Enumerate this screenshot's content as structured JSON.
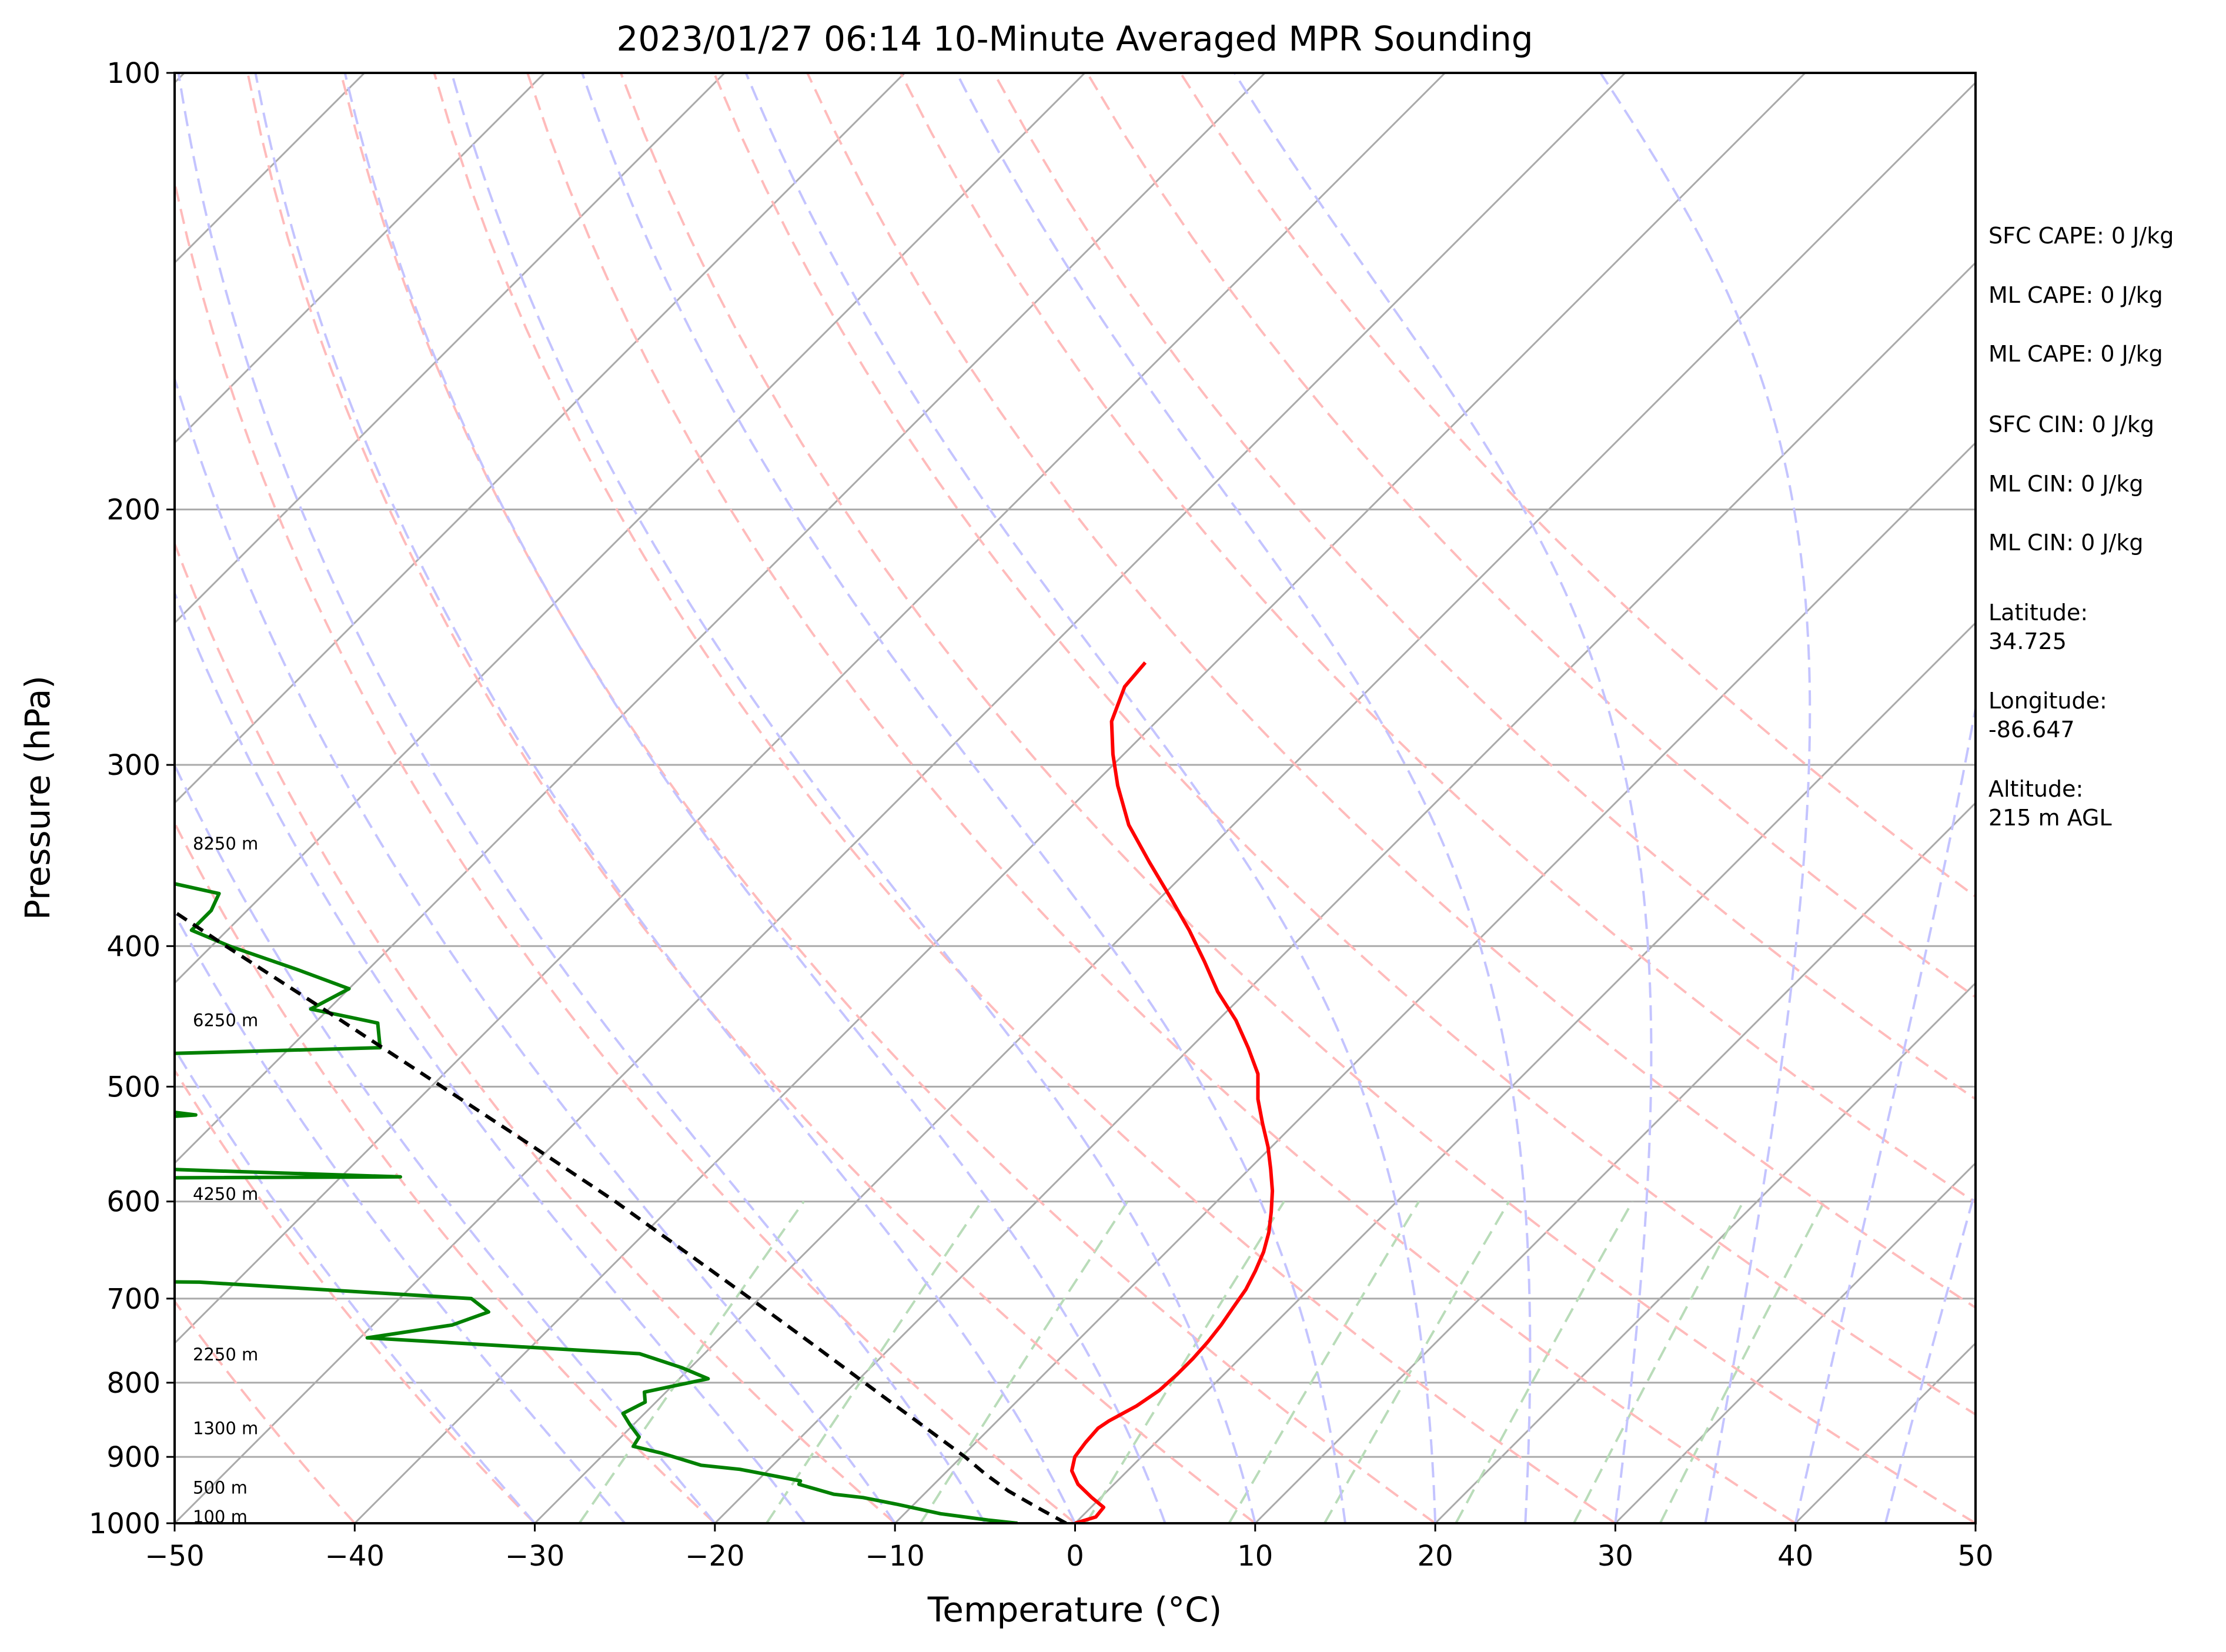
{
  "chart_data": {
    "type": "skew-t",
    "title": "2023/01/27 06:14 10-Minute Averaged MPR Sounding",
    "xlabel": "Temperature (°C)",
    "ylabel": "Pressure (hPa)",
    "xlim": [
      -50,
      50
    ],
    "ylim": [
      1000,
      100
    ],
    "y_scale": "log",
    "x_ticks": [
      "−50",
      "−40",
      "−30",
      "−20",
      "−10",
      "0",
      "10",
      "20",
      "30",
      "40",
      "50"
    ],
    "y_ticks": [
      "1000",
      "900",
      "800",
      "700",
      "600",
      "500",
      "400",
      "300",
      "200",
      "100"
    ],
    "grid": true,
    "series": [
      {
        "name": "temperature",
        "color": "#ff0000",
        "points": [
          [
            1000,
            0.0
          ],
          [
            990,
            0.8
          ],
          [
            975,
            0.7
          ],
          [
            960,
            -0.5
          ],
          [
            940,
            -2.0
          ],
          [
            920,
            -3.1
          ],
          [
            900,
            -3.7
          ],
          [
            880,
            -3.9
          ],
          [
            860,
            -4.0
          ],
          [
            850,
            -3.8
          ],
          [
            830,
            -3.1
          ],
          [
            810,
            -2.7
          ],
          [
            790,
            -2.6
          ],
          [
            770,
            -2.6
          ],
          [
            750,
            -2.7
          ],
          [
            730,
            -2.9
          ],
          [
            710,
            -3.2
          ],
          [
            690,
            -3.5
          ],
          [
            670,
            -4.0
          ],
          [
            650,
            -4.6
          ],
          [
            630,
            -5.4
          ],
          [
            610,
            -6.4
          ],
          [
            590,
            -7.5
          ],
          [
            570,
            -8.8
          ],
          [
            550,
            -10.2
          ],
          [
            530,
            -11.8
          ],
          [
            510,
            -13.4
          ],
          [
            490,
            -14.8
          ],
          [
            470,
            -16.8
          ],
          [
            450,
            -19.0
          ],
          [
            430,
            -21.6
          ],
          [
            410,
            -24.0
          ],
          [
            390,
            -26.6
          ],
          [
            370,
            -29.5
          ],
          [
            350,
            -32.6
          ],
          [
            330,
            -35.8
          ],
          [
            310,
            -38.6
          ],
          [
            295,
            -40.6
          ],
          [
            280,
            -42.5
          ],
          [
            265,
            -43.7
          ],
          [
            255,
            -43.9
          ]
        ]
      },
      {
        "name": "dewpoint",
        "color": "#008000",
        "points": [
          [
            1000,
            -3.2
          ],
          [
            995,
            -5.0
          ],
          [
            985,
            -8.0
          ],
          [
            970,
            -11.0
          ],
          [
            960,
            -13.2
          ],
          [
            955,
            -15.0
          ],
          [
            940,
            -17.5
          ],
          [
            935,
            -17.6
          ],
          [
            918,
            -21.6
          ],
          [
            912,
            -24.0
          ],
          [
            895,
            -26.8
          ],
          [
            885,
            -28.8
          ],
          [
            872,
            -29.0
          ],
          [
            855,
            -30.2
          ],
          [
            840,
            -31.2
          ],
          [
            825,
            -30.6
          ],
          [
            812,
            -31.2
          ],
          [
            795,
            -28.4
          ],
          [
            781,
            -30.5
          ],
          [
            764,
            -33.6
          ],
          [
            745,
            -49.6
          ],
          [
            730,
            -45.6
          ],
          [
            715,
            -44.3
          ],
          [
            700,
            -46.0
          ],
          [
            682,
            -62.0
          ],
          [
            680,
            -72.0
          ],
          [
            580,
            -87.0
          ],
          [
            578,
            -72.0
          ],
          [
            577,
            -56.7
          ],
          [
            565,
            -80.0
          ],
          [
            550,
            -96.0
          ],
          [
            540,
            -88.0
          ],
          [
            523,
            -71.5
          ],
          [
            510,
            -79.5
          ],
          [
            502,
            -85.0
          ],
          [
            488,
            -111.0
          ],
          [
            470,
            -65.0
          ],
          [
            452,
            -66.5
          ],
          [
            442,
            -71.0
          ],
          [
            428,
            -70.0
          ],
          [
            415,
            -74.0
          ],
          [
            400,
            -79.0
          ],
          [
            390,
            -82.0
          ],
          [
            378,
            -82.0
          ],
          [
            368,
            -82.5
          ],
          [
            345,
            -95.0
          ],
          [
            330,
            -91.0
          ],
          [
            320,
            -96.0
          ],
          [
            305,
            -119.0
          ],
          [
            304,
            -135.0
          ]
        ]
      },
      {
        "name": "parcel",
        "color": "#000000",
        "dashed": true,
        "points": [
          [
            1000,
            -0.5
          ],
          [
            975,
            -3.0
          ],
          [
            950,
            -5.5
          ],
          [
            925,
            -7.7
          ],
          [
            900,
            -9.8
          ],
          [
            850,
            -14.5
          ],
          [
            800,
            -19.5
          ],
          [
            750,
            -24.8
          ],
          [
            700,
            -30.5
          ],
          [
            650,
            -36.7
          ],
          [
            600,
            -43.4
          ],
          [
            550,
            -51.0
          ],
          [
            500,
            -59.4
          ],
          [
            450,
            -68.7
          ],
          [
            400,
            -79.2
          ],
          [
            350,
            -90.9
          ],
          [
            304,
            -101.0
          ]
        ]
      }
    ],
    "height_labels": [
      {
        "text": "100 m",
        "pressure": 990
      },
      {
        "text": "500 m",
        "pressure": 945
      },
      {
        "text": "1300 m",
        "pressure": 860
      },
      {
        "text": "2250 m",
        "pressure": 765
      },
      {
        "text": "4250 m",
        "pressure": 593
      },
      {
        "text": "6250 m",
        "pressure": 450
      },
      {
        "text": "8250 m",
        "pressure": 340
      }
    ],
    "reference_lines": {
      "isotherm_color": "#aaaaaa",
      "dry_adiabat_color": "#ffbbbb",
      "moist_adiabat_color": "#c4c4ff",
      "mixing_ratio_color": "#b9dcb9"
    }
  },
  "info_panel": {
    "sfc_cape": "SFC CAPE: 0 J/kg",
    "ml_cape_1": "ML CAPE: 0 J/kg",
    "ml_cape_2": "ML CAPE: 0 J/kg",
    "sfc_cin": "SFC CIN: 0 J/kg",
    "ml_cin_1": "ML CIN: 0 J/kg",
    "ml_cin_2": "ML CIN: 0 J/kg",
    "latitude_label": "Latitude:",
    "latitude_value": "34.725",
    "longitude_label": "Longitude:",
    "longitude_value": "-86.647",
    "altitude_label": "Altitude:",
    "altitude_value": "215 m AGL"
  }
}
